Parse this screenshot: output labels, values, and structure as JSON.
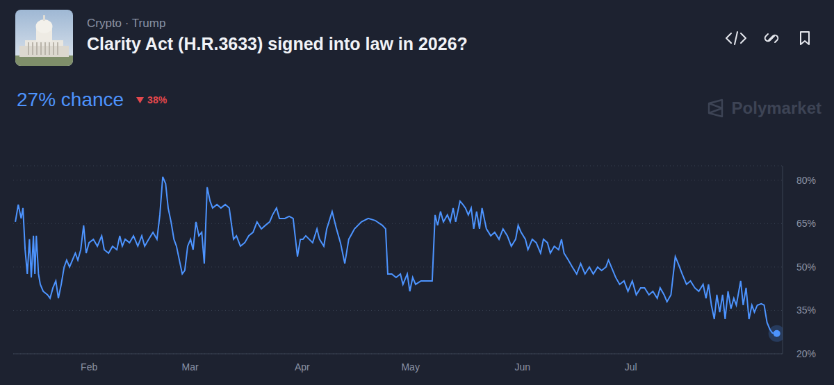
{
  "header": {
    "category": "Crypto · Trump",
    "title": "Clarity Act (H.R.3633) signed into law in 2026?",
    "probability": "27% chance",
    "change": "38%",
    "watermark": "Polymarket"
  },
  "chart_data": {
    "type": "line",
    "color": "#4d94ff",
    "marker": "last",
    "grid": true,
    "x": [
      11.6,
      12.4,
      13.2,
      13.7,
      14.3,
      14.9,
      15.5,
      16.0,
      16.6,
      17.0,
      17.4,
      18.0,
      18.5,
      19.3,
      20.5,
      21.2,
      22.0,
      22.8,
      23.5,
      24.3,
      25.1,
      25.8,
      26.6,
      27.4,
      28.2,
      28.9,
      29.7,
      30.5,
      31.2,
      32.0,
      33.2,
      34.3,
      35.5,
      36.2,
      37.4,
      38.5,
      39.7,
      40.5,
      41.2,
      42.0,
      43.2,
      44.3,
      45.5,
      46.6,
      47.4,
      48.5,
      49.7,
      50.8,
      51.6,
      52.4,
      53.2,
      53.9,
      54.7,
      55.5,
      56.2,
      57.0,
      57.8,
      58.5,
      59.3,
      60.1,
      60.8,
      61.6,
      62.4,
      63.2,
      63.9,
      64.7,
      65.5,
      66.2,
      67.4,
      68.5,
      69.7,
      70.8,
      72.0,
      72.8,
      73.9,
      75.1,
      76.2,
      77.4,
      78.5,
      79.7,
      80.8,
      82.0,
      82.8,
      83.9,
      84.7,
      86.2,
      87.4,
      88.5,
      89.7,
      90.5,
      91.2,
      92.0,
      93.9,
      95.1,
      95.8,
      97.0,
      97.8,
      99.3,
      100.5,
      101.6,
      102.8,
      103.9,
      105.5,
      107.4,
      109.3,
      111.2,
      113.2,
      114.1,
      114.7,
      115.8,
      117.0,
      118.2,
      118.9,
      120.1,
      120.8,
      121.6,
      122.4,
      123.9,
      125.5,
      127.0,
      127.8,
      128.5,
      129.3,
      130.1,
      131.2,
      132.0,
      132.8,
      133.5,
      134.7,
      135.5,
      136.2,
      137.0,
      137.8,
      138.5,
      139.3,
      140.1,
      140.8,
      142.0,
      143.2,
      144.3,
      145.5,
      146.6,
      147.8,
      148.9,
      150.1,
      150.8,
      151.6,
      152.8,
      153.5,
      154.7,
      155.8,
      157.0,
      157.8,
      158.9,
      159.7,
      160.8,
      162.0,
      162.8,
      163.5,
      164.7,
      165.8,
      167.0,
      168.1,
      169.3,
      170.5,
      171.6,
      172.8,
      173.9,
      175.1,
      175.8,
      176.6,
      177.8,
      178.9,
      180.1,
      181.2,
      182.4,
      183.5,
      184.7,
      185.8,
      187.0,
      188.1,
      189.3,
      190.1,
      191.2,
      192.0,
      193.1,
      194.3,
      195.1,
      196.2,
      197.4,
      198.5,
      199.7,
      200.8,
      202.0,
      202.8,
      203.5,
      204.3,
      205.1,
      205.8,
      206.6,
      207.4,
      208.1,
      208.9,
      209.7,
      210.5,
      211.2,
      212.4,
      213.1,
      213.9,
      214.7,
      215.5,
      216.2,
      217.0,
      218.1,
      218.9,
      219.7,
      220.5,
      221.2,
      222.4
    ],
    "values": [
      65.6,
      71.6,
      66.8,
      70.4,
      56,
      47.6,
      59.6,
      46.4,
      60.8,
      47.6,
      60.8,
      47.6,
      44,
      41.6,
      40.4,
      39.2,
      42.8,
      45.2,
      39.2,
      44,
      50,
      52.4,
      50,
      52.4,
      54.8,
      52.4,
      56,
      64.4,
      54.8,
      58.4,
      59.6,
      57.2,
      60.8,
      56,
      54.8,
      57.2,
      56,
      60.8,
      57.2,
      59.6,
      58.4,
      60.8,
      57.2,
      60.8,
      57.2,
      59.6,
      62,
      59.6,
      68,
      81.2,
      78.8,
      70.4,
      65.6,
      59.6,
      57.2,
      52.4,
      47.6,
      48.8,
      57.2,
      59.6,
      56,
      65.6,
      60.8,
      62,
      51.2,
      77.6,
      72.8,
      70.4,
      71.6,
      70.4,
      71.6,
      70.4,
      59.6,
      60.8,
      57.2,
      58.4,
      60.8,
      62,
      65.6,
      63.2,
      64.4,
      65.6,
      68,
      70.4,
      66.8,
      66.8,
      67.5,
      66.8,
      53.6,
      59.6,
      59.6,
      60.8,
      58.4,
      63.2,
      59.6,
      57.2,
      63.2,
      69.2,
      63.2,
      58.4,
      51.2,
      59.6,
      63.2,
      65.6,
      66.8,
      66.1,
      64.4,
      63.2,
      47.6,
      47.6,
      46.4,
      47.6,
      44,
      47.6,
      41.6,
      46.4,
      44,
      45.2,
      45.2,
      45.2,
      68,
      64.4,
      69.2,
      65.6,
      68,
      65.6,
      70.4,
      65.6,
      72.8,
      71.6,
      70.4,
      68,
      70.4,
      63.2,
      69.2,
      63.2,
      70.4,
      63.2,
      60.8,
      62,
      59.6,
      63.2,
      60.8,
      57.2,
      59.6,
      64.4,
      62,
      59.6,
      56,
      59.6,
      58.4,
      54.8,
      59.6,
      58.4,
      54.8,
      57.2,
      56,
      59.6,
      54.8,
      52.4,
      50,
      47.6,
      51.2,
      47.6,
      50,
      47.6,
      50,
      48.8,
      50,
      52.4,
      50,
      46.4,
      44,
      45.2,
      41.6,
      45.2,
      40.4,
      42.8,
      42.8,
      40.4,
      41.6,
      39.2,
      42.8,
      40.4,
      38,
      40.4,
      53.6,
      51.2,
      47.6,
      44,
      45.2,
      42.8,
      41.6,
      44,
      39.2,
      44,
      36.8,
      32,
      40.4,
      34.4,
      40.4,
      32,
      41.6,
      35.6,
      39.2,
      36.8,
      45.2,
      36.8,
      42.8,
      32,
      36.8,
      34.4,
      36.8,
      37.3,
      36.8,
      30.8,
      28.4,
      27.2,
      27
    ],
    "xlim": [
      11,
      224
    ],
    "xticks": [
      {
        "value": 32,
        "label": "Feb"
      },
      {
        "value": 60,
        "label": "Mar"
      },
      {
        "value": 91,
        "label": "Apr"
      },
      {
        "value": 121,
        "label": "May"
      },
      {
        "value": 152,
        "label": "Jun"
      },
      {
        "value": 182,
        "label": "Jul"
      }
    ],
    "ylim": [
      20,
      85
    ],
    "yticks": [
      {
        "value": 20,
        "label": "20%"
      },
      {
        "value": 35,
        "label": "35%"
      },
      {
        "value": 50,
        "label": "50%"
      },
      {
        "value": 65,
        "label": "65%"
      },
      {
        "value": 80,
        "label": "80%"
      }
    ]
  }
}
